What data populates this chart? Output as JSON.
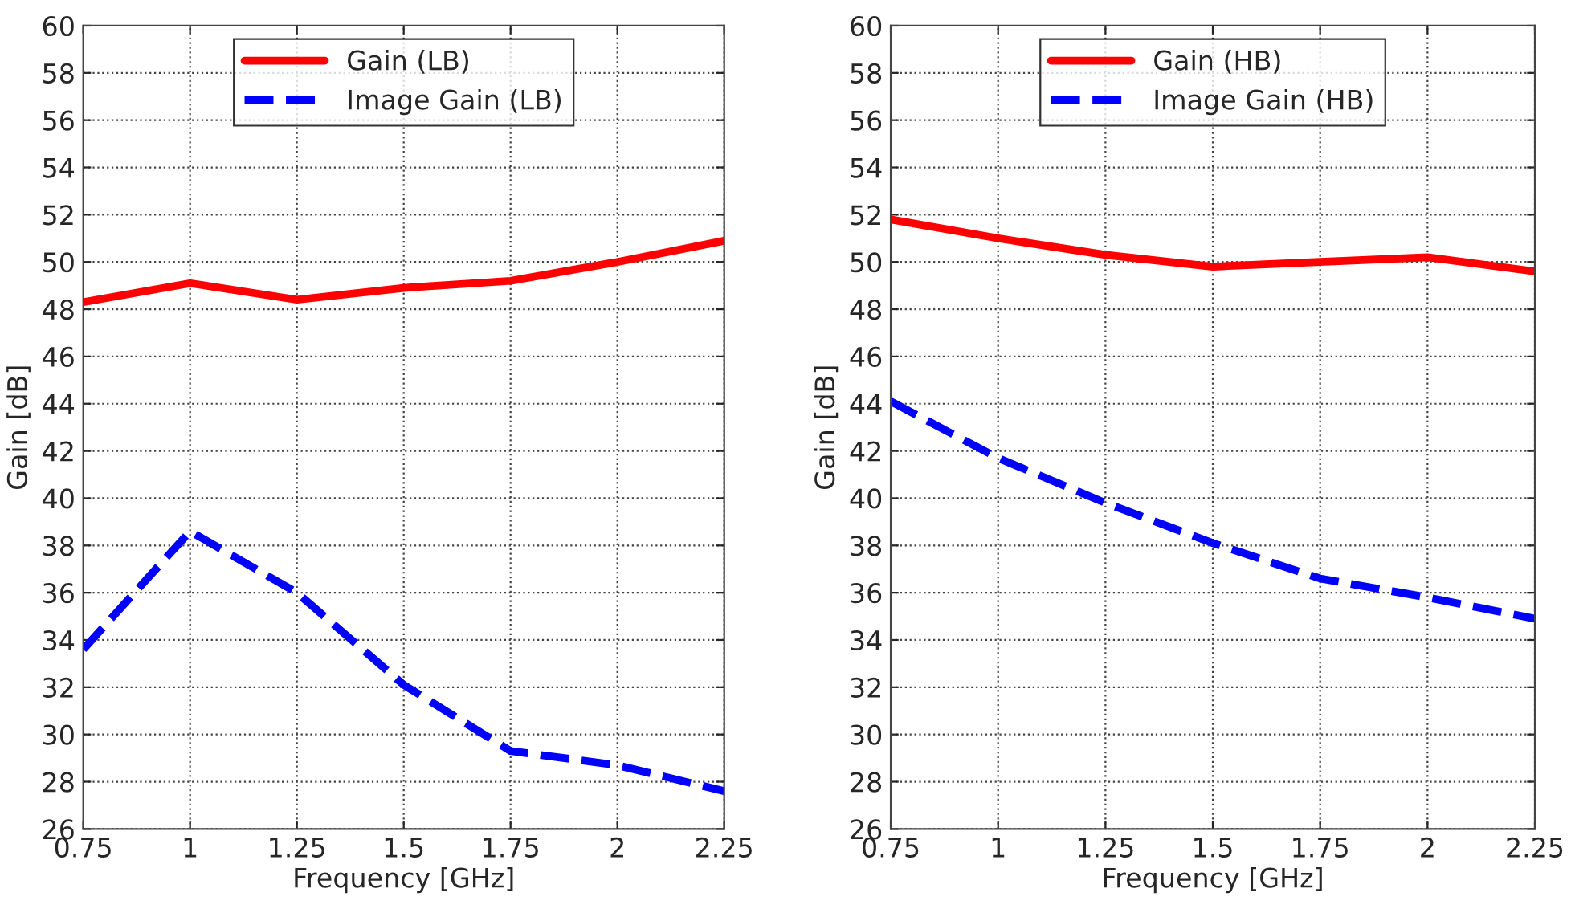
{
  "chart_data": [
    {
      "type": "line",
      "xlabel": "Frequency [GHz]",
      "ylabel": "Gain [dB]",
      "x": [
        0.75,
        1,
        1.25,
        1.5,
        1.75,
        2,
        2.25
      ],
      "xlim": [
        0.75,
        2.25
      ],
      "xticks": [
        0.75,
        1,
        1.25,
        1.5,
        1.75,
        2,
        2.25
      ],
      "ylim": [
        26,
        60
      ],
      "yticks": [
        26,
        28,
        30,
        32,
        34,
        36,
        38,
        40,
        42,
        44,
        46,
        48,
        50,
        52,
        54,
        56,
        58,
        60
      ],
      "grid": true,
      "legend": "top",
      "marker": "none",
      "series": [
        {
          "name": "Gain (LB)",
          "color": "#ff0000",
          "line_style": "solid",
          "values": [
            48.3,
            49.1,
            48.4,
            48.9,
            49.2,
            50.0,
            50.9
          ]
        },
        {
          "name": "Image Gain (LB)",
          "color": "#0000ff",
          "line_style": "dashed",
          "values": [
            33.6,
            38.6,
            36.0,
            32.1,
            29.3,
            28.7,
            27.6
          ]
        }
      ]
    },
    {
      "type": "line",
      "xlabel": "Frequency [GHz]",
      "ylabel": "Gain [dB]",
      "x": [
        0.75,
        1,
        1.25,
        1.5,
        1.75,
        2,
        2.25
      ],
      "xlim": [
        0.75,
        2.25
      ],
      "xticks": [
        0.75,
        1,
        1.25,
        1.5,
        1.75,
        2,
        2.25
      ],
      "ylim": [
        26,
        60
      ],
      "yticks": [
        26,
        28,
        30,
        32,
        34,
        36,
        38,
        40,
        42,
        44,
        46,
        48,
        50,
        52,
        54,
        56,
        58,
        60
      ],
      "grid": true,
      "legend": "top",
      "marker": "none",
      "series": [
        {
          "name": "Gain (HB)",
          "color": "#ff0000",
          "line_style": "solid",
          "values": [
            51.8,
            51.0,
            50.3,
            49.8,
            50.0,
            50.2,
            49.6
          ]
        },
        {
          "name": "Image Gain (HB)",
          "color": "#0000ff",
          "line_style": "dashed",
          "values": [
            44.1,
            41.7,
            39.8,
            38.1,
            36.6,
            35.8,
            34.9
          ]
        }
      ]
    }
  ]
}
